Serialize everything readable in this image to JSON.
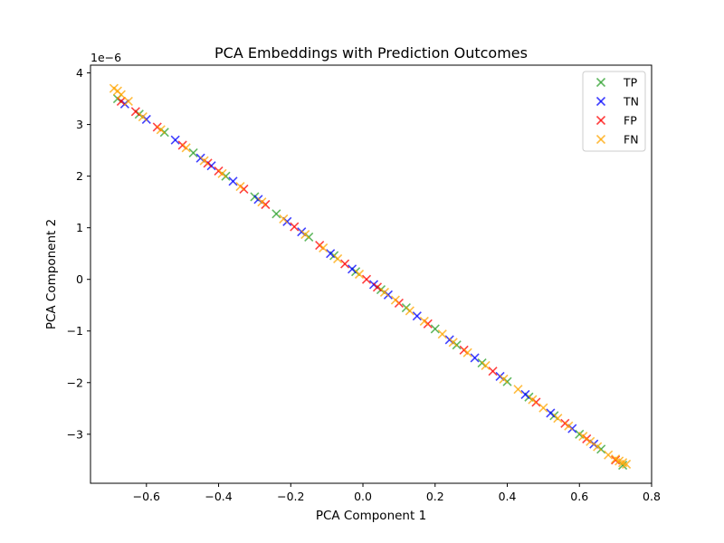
{
  "chart_data": {
    "type": "scatter",
    "title": "PCA Embeddings with Prediction Outcomes",
    "xlabel": "PCA Component 1",
    "ylabel": "PCA Component 2",
    "y_scale_note": "1e−6",
    "xlim": [
      -0.755,
      0.8
    ],
    "ylim": [
      -3.95,
      4.15
    ],
    "xticks": [
      -0.6,
      -0.4,
      -0.2,
      0.0,
      0.2,
      0.4,
      0.6,
      0.8
    ],
    "xtick_labels": [
      "−0.6",
      "−0.4",
      "−0.2",
      "0.0",
      "0.2",
      "0.4",
      "0.6",
      "0.8"
    ],
    "yticks": [
      -3,
      -2,
      -1,
      0,
      1,
      2,
      3,
      4
    ],
    "ytick_labels": [
      "−3",
      "−2",
      "−1",
      "0",
      "1",
      "2",
      "3",
      "4"
    ],
    "grid": false,
    "legend_position": "top-right",
    "marker": "x",
    "relationship": "points lie along line y ≈ 0.05 − 5.06x (y in units of 1e−6)",
    "series": [
      {
        "name": "TP",
        "color": "#2ca02c",
        "points": [
          [
            -0.68,
            3.5
          ],
          [
            -0.62,
            3.2
          ],
          [
            -0.55,
            2.85
          ],
          [
            -0.47,
            2.45
          ],
          [
            -0.38,
            2.0
          ],
          [
            -0.3,
            1.6
          ],
          [
            -0.24,
            1.27
          ],
          [
            -0.15,
            0.82
          ],
          [
            -0.08,
            0.46
          ],
          [
            -0.02,
            0.15
          ],
          [
            0.05,
            -0.2
          ],
          [
            0.12,
            -0.55
          ],
          [
            0.2,
            -0.96
          ],
          [
            0.26,
            -1.27
          ],
          [
            0.33,
            -1.62
          ],
          [
            0.4,
            -1.98
          ],
          [
            0.46,
            -2.28
          ],
          [
            0.53,
            -2.64
          ],
          [
            0.6,
            -3.0
          ],
          [
            0.66,
            -3.29
          ],
          [
            0.72,
            -3.6
          ]
        ]
      },
      {
        "name": "TN",
        "color": "#0000ff",
        "points": [
          [
            -0.66,
            3.4
          ],
          [
            -0.6,
            3.1
          ],
          [
            -0.52,
            2.7
          ],
          [
            -0.45,
            2.35
          ],
          [
            -0.42,
            2.2
          ],
          [
            -0.36,
            1.9
          ],
          [
            -0.29,
            1.55
          ],
          [
            -0.21,
            1.12
          ],
          [
            -0.17,
            0.92
          ],
          [
            -0.09,
            0.5
          ],
          [
            -0.03,
            0.2
          ],
          [
            0.03,
            -0.1
          ],
          [
            0.07,
            -0.3
          ],
          [
            0.15,
            -0.71
          ],
          [
            0.24,
            -1.17
          ],
          [
            0.31,
            -1.52
          ],
          [
            0.38,
            -1.88
          ],
          [
            0.45,
            -2.23
          ],
          [
            0.52,
            -2.59
          ],
          [
            0.58,
            -2.89
          ],
          [
            0.64,
            -3.19
          ]
        ]
      },
      {
        "name": "FP",
        "color": "#ff0000",
        "points": [
          [
            -0.67,
            3.45
          ],
          [
            -0.63,
            3.25
          ],
          [
            -0.57,
            2.95
          ],
          [
            -0.5,
            2.6
          ],
          [
            -0.43,
            2.25
          ],
          [
            -0.4,
            2.1
          ],
          [
            -0.33,
            1.75
          ],
          [
            -0.27,
            1.45
          ],
          [
            -0.19,
            1.02
          ],
          [
            -0.12,
            0.66
          ],
          [
            -0.05,
            0.3
          ],
          [
            0.01,
            0.0
          ],
          [
            0.04,
            -0.15
          ],
          [
            0.1,
            -0.46
          ],
          [
            0.18,
            -0.86
          ],
          [
            0.28,
            -1.37
          ],
          [
            0.36,
            -1.78
          ],
          [
            0.48,
            -2.38
          ],
          [
            0.56,
            -2.79
          ],
          [
            0.62,
            -3.09
          ],
          [
            0.7,
            -3.5
          ]
        ]
      },
      {
        "name": "FN",
        "color": "#ffa500",
        "points": [
          [
            -0.69,
            3.7
          ],
          [
            -0.68,
            3.65
          ],
          [
            -0.67,
            3.58
          ],
          [
            -0.65,
            3.45
          ],
          [
            -0.61,
            3.15
          ],
          [
            -0.56,
            2.9
          ],
          [
            -0.49,
            2.55
          ],
          [
            -0.44,
            2.3
          ],
          [
            -0.39,
            2.05
          ],
          [
            -0.34,
            1.8
          ],
          [
            -0.28,
            1.5
          ],
          [
            -0.22,
            1.17
          ],
          [
            -0.16,
            0.87
          ],
          [
            -0.11,
            0.61
          ],
          [
            -0.07,
            0.4
          ],
          [
            -0.01,
            0.1
          ],
          [
            0.06,
            -0.25
          ],
          [
            0.09,
            -0.4
          ],
          [
            0.13,
            -0.61
          ],
          [
            0.17,
            -0.81
          ],
          [
            0.22,
            -1.06
          ],
          [
            0.25,
            -1.22
          ],
          [
            0.29,
            -1.42
          ],
          [
            0.34,
            -1.67
          ],
          [
            0.39,
            -1.93
          ],
          [
            0.43,
            -2.13
          ],
          [
            0.47,
            -2.33
          ],
          [
            0.5,
            -2.49
          ],
          [
            0.54,
            -2.69
          ],
          [
            0.57,
            -2.84
          ],
          [
            0.61,
            -3.04
          ],
          [
            0.63,
            -3.14
          ],
          [
            0.65,
            -3.24
          ],
          [
            0.68,
            -3.4
          ],
          [
            0.7,
            -3.48
          ],
          [
            0.71,
            -3.52
          ],
          [
            0.72,
            -3.55
          ],
          [
            0.73,
            -3.58
          ]
        ]
      }
    ]
  }
}
